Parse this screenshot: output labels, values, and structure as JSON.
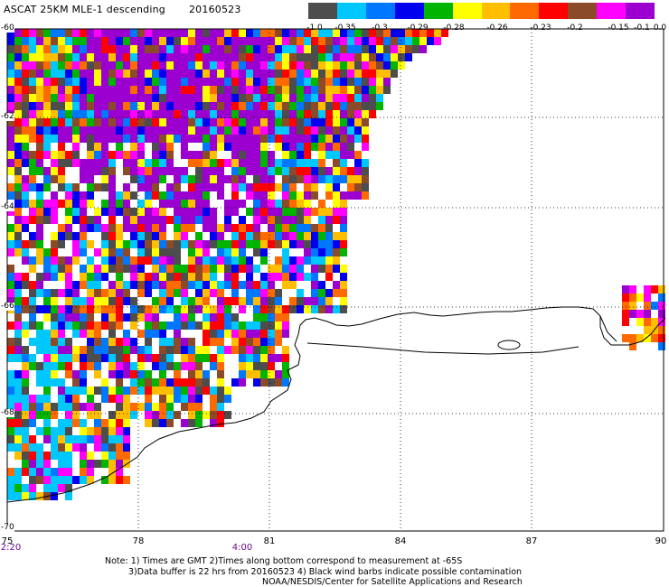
{
  "title": {
    "product": "ASCAT 25KM MLE-1 descending",
    "date": "20160523"
  },
  "colorbar": {
    "colors": [
      "#4d4d4d",
      "#00c8ff",
      "#0077ff",
      "#0000ee",
      "#00b400",
      "#ffff00",
      "#ffbf00",
      "#ff6a00",
      "#ff0000",
      "#8b4a28",
      "#ff00ff",
      "#9b00d0"
    ],
    "labels": [
      "-1.0",
      "-0.35",
      "-0.3",
      "-0.29",
      "-0.28",
      "-0.26",
      "-0.23",
      "-0.2",
      "-0.15",
      "-0.1",
      "0.0"
    ]
  },
  "map": {
    "lon_range": [
      75,
      90
    ],
    "lat_range": [
      -60,
      -70
    ],
    "lon_labels": [
      "75",
      "78",
      "81",
      "84",
      "87",
      "90"
    ],
    "lat_labels": [
      "-60",
      "-62",
      "-64",
      "-66",
      "-68",
      "-70"
    ],
    "time_labels": [
      "2:20",
      "4:00"
    ]
  },
  "notes": {
    "line1": "Note: 1) Times are GMT 2)Times along bottom correspond to measurement at -65S",
    "line2": "3)Data buffer is 22 hrs from 20160523 4) Black wind barbs indicate possible contamination",
    "line3": "NOAA/NESDIS/Center for Satellite Applications and Research"
  }
}
